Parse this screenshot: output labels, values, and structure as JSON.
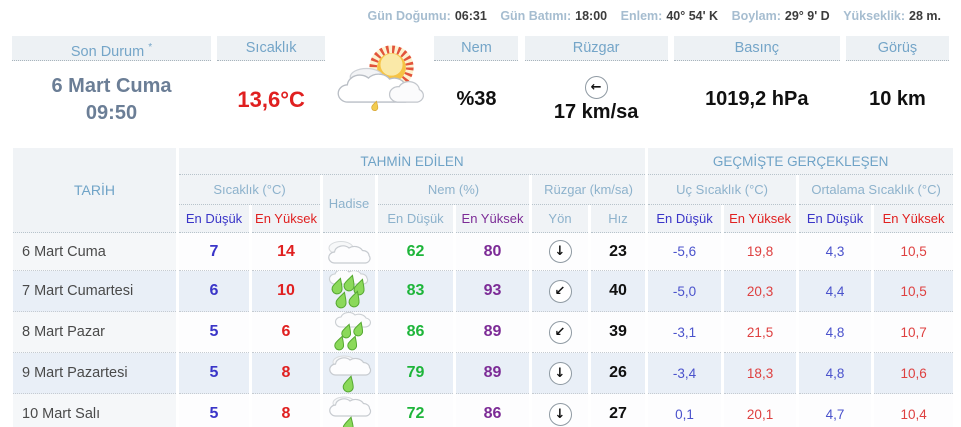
{
  "topbar": {
    "items": [
      {
        "label": "Gün Doğumu:",
        "value": "06:31"
      },
      {
        "label": "Gün Batımı:",
        "value": "18:00"
      },
      {
        "label": "Enlem:",
        "value": "40° 54' K"
      },
      {
        "label": "Boylam:",
        "value": "29° 9' D"
      },
      {
        "label": "Yükseklik:",
        "value": "28 m."
      }
    ]
  },
  "current": {
    "son_durum_label": "Son Durum",
    "son_durum_star": "*",
    "date": "6 Mart Cuma",
    "time": "09:50",
    "sicaklik_label": "Sıcaklık",
    "temperature": "13,6°C",
    "icon": "sun-clouds",
    "nem_label": "Nem",
    "humidity": "%38",
    "ruzgar_label": "Rüzgar",
    "wind_dir": "left",
    "wind_glyph": "←",
    "wind_speed": "17 km/sa",
    "basinc_label": "Basınç",
    "pressure": "1019,2 hPa",
    "gorus_label": "Görüş",
    "visibility": "10 km"
  },
  "table": {
    "tarih_label": "TARİH",
    "group_forecast": "TAHMİN EDİLEN",
    "group_past": "GEÇMİŞTE GERÇEKLEŞEN",
    "col_sicaklik": "Sıcaklık (°C)",
    "col_hadise": "Hadise",
    "col_nem": "Nem (%)",
    "col_ruzgar": "Rüzgar (km/sa)",
    "col_uc": "Uç Sıcaklık (°C)",
    "col_ortalama": "Ortalama Sıcaklık (°C)",
    "sub_min": "En Düşük",
    "sub_max": "En Yüksek",
    "sub_yon": "Yön",
    "sub_hiz": "Hız",
    "rows": [
      {
        "date": "6 Mart Cuma",
        "temp_min": "7",
        "temp_max": "14",
        "hadise_icon": "cloudy",
        "nem_min": "62",
        "nem_max": "80",
        "wind_dir": "down",
        "wind_glyph": "↓",
        "wind_speed": "23",
        "uc_min": "-5,6",
        "uc_max": "19,8",
        "ort_min": "4,3",
        "ort_max": "10,5"
      },
      {
        "date": "7 Mart Cumartesi",
        "temp_min": "6",
        "temp_max": "10",
        "hadise_icon": "heavy-rain",
        "nem_min": "83",
        "nem_max": "93",
        "wind_dir": "down-left",
        "wind_glyph": "↙",
        "wind_speed": "40",
        "uc_min": "-5,0",
        "uc_max": "20,3",
        "ort_min": "4,4",
        "ort_max": "10,5"
      },
      {
        "date": "8 Mart Pazar",
        "temp_min": "5",
        "temp_max": "6",
        "hadise_icon": "rain",
        "nem_min": "86",
        "nem_max": "89",
        "wind_dir": "down-left",
        "wind_glyph": "↙",
        "wind_speed": "39",
        "uc_min": "-3,1",
        "uc_max": "21,5",
        "ort_min": "4,8",
        "ort_max": "10,7"
      },
      {
        "date": "9 Mart Pazartesi",
        "temp_min": "5",
        "temp_max": "8",
        "hadise_icon": "light-rain",
        "nem_min": "79",
        "nem_max": "89",
        "wind_dir": "down",
        "wind_glyph": "↓",
        "wind_speed": "26",
        "uc_min": "-3,4",
        "uc_max": "18,3",
        "ort_min": "4,8",
        "ort_max": "10,6"
      },
      {
        "date": "10 Mart Salı",
        "temp_min": "5",
        "temp_max": "8",
        "hadise_icon": "light-rain",
        "nem_min": "72",
        "nem_max": "86",
        "wind_dir": "down",
        "wind_glyph": "↓",
        "wind_speed": "27",
        "uc_min": "0,1",
        "uc_max": "20,1",
        "ort_min": "4,7",
        "ort_max": "10,4"
      }
    ]
  },
  "colors": {
    "header_blue": "#6fa3c7",
    "light_blue": "#8db2cc",
    "min_temp_blue": "#3a35c8",
    "max_temp_red": "#e02020",
    "humidity_green": "#1eb53a",
    "humidity_purple": "#7c2b96",
    "past_blue": "#4a52cc",
    "past_red": "#de4040",
    "alt_row_bg": "#e9eff7"
  }
}
